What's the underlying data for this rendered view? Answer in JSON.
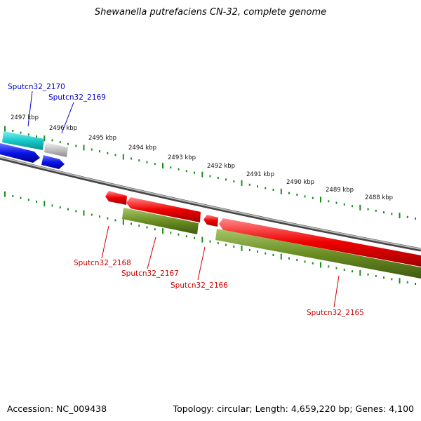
{
  "title": "Shewanella putrefaciens CN-32, complete genome",
  "accession": "Accession: NC_009438",
  "topology": "Topology: circular; Length: 4,659,220 bp; Genes: 4,100",
  "ruler_ticks": [
    "2497 kbp",
    "2496 kbp",
    "2495 kbp",
    "2494 kbp",
    "2493 kbp",
    "2492 kbp",
    "2491 kbp",
    "2490 kbp",
    "2489 kbp",
    "2488 kbp"
  ],
  "genes": [
    {
      "name": "Sputcn32_2170",
      "strand": "forward",
      "label_color": "#0000cc",
      "feature_colors": [
        "#18c8c8",
        "#0a14e8"
      ]
    },
    {
      "name": "Sputcn32_2169",
      "strand": "forward",
      "label_color": "#0000cc",
      "feature_colors": [
        "#c0c0c0",
        "#0a14e8"
      ]
    },
    {
      "name": "Sputcn32_2168",
      "strand": "reverse",
      "label_color": "#cc0000",
      "feature_colors": [
        "#ee0000"
      ]
    },
    {
      "name": "Sputcn32_2167",
      "strand": "reverse",
      "label_color": "#cc0000",
      "feature_colors": [
        "#ee0000",
        "#6b8e23"
      ]
    },
    {
      "name": "Sputcn32_2166",
      "strand": "reverse",
      "label_color": "#cc0000",
      "feature_colors": [
        "#ee0000"
      ]
    },
    {
      "name": "Sputcn32_2165",
      "strand": "reverse",
      "label_color": "#cc0000",
      "feature_colors": [
        "#ee0000",
        "#6b8e23"
      ]
    }
  ],
  "colors": {
    "backbone": "#888888",
    "tick": "#1a8c1a",
    "cds_forward": "#0a14e8",
    "rna_forward": "#18c8c8",
    "other_forward": "#c0c0c0",
    "cds_reverse": "#ee0000",
    "gene_reverse": "#6b8e23"
  }
}
